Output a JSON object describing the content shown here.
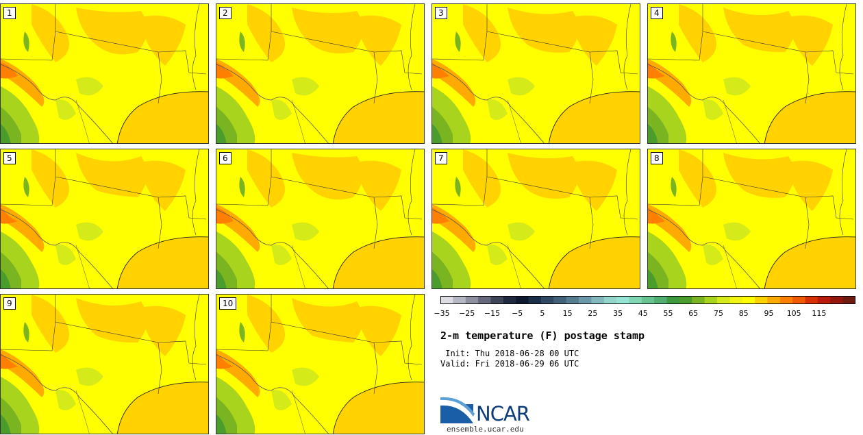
{
  "stamps": [
    {
      "label": "1"
    },
    {
      "label": "2"
    },
    {
      "label": "3"
    },
    {
      "label": "4"
    },
    {
      "label": "5"
    },
    {
      "label": "6"
    },
    {
      "label": "7"
    },
    {
      "label": "8"
    },
    {
      "label": "9"
    },
    {
      "label": "10"
    }
  ],
  "colorbar": {
    "colors": [
      "#dddde3",
      "#b5b8c2",
      "#8d919f",
      "#65697b",
      "#3f4658",
      "#1f2a40",
      "#0d1a30",
      "#1b2f48",
      "#2f4a62",
      "#43627a",
      "#567c90",
      "#6d98a7",
      "#84b6bd",
      "#94d5cb",
      "#94e3d3",
      "#7fd6b0",
      "#66c490",
      "#4fae70",
      "#3d9a3f",
      "#4a9c2c",
      "#7ab521",
      "#a9d41e",
      "#d4ea19",
      "#f1f512",
      "#ffff00",
      "#ffd200",
      "#ffaa00",
      "#ff8000",
      "#f05a00",
      "#d83000",
      "#b81c0a",
      "#94160e",
      "#6e1a10"
    ],
    "tick_labels": [
      "−35",
      "−25",
      "−15",
      "−5",
      "5",
      "15",
      "25",
      "35",
      "45",
      "55",
      "65",
      "75",
      "85",
      "95",
      "105",
      "115"
    ]
  },
  "title": "2-m temperature (F) postage stamp",
  "init_line": " Init: Thu 2018-06-28 00 UTC",
  "valid_line": "Valid: Fri 2018-06-29 06 UTC",
  "logo": {
    "text": "NCAR",
    "url_text": "ensemble.ucar.edu"
  },
  "palette": {
    "land": "#ffff00",
    "warm": "#ffd200",
    "hot": "#ffaa00",
    "hotter": "#ff8000",
    "cool": "#d4ea19",
    "cooler": "#a9d41e",
    "cold": "#7ab521",
    "colder": "#4a9c2c",
    "gulf": "#ffd200"
  }
}
